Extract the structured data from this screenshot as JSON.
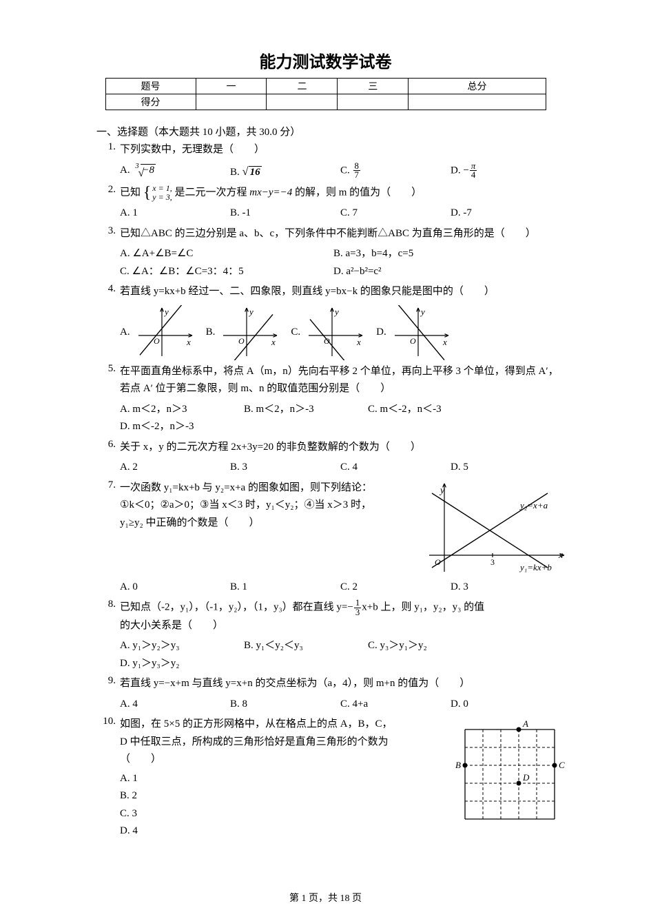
{
  "title": "能力测试数学试卷",
  "score_table": {
    "row1": [
      "题号",
      "一",
      "二",
      "三",
      "总分"
    ],
    "row2_head": "得分"
  },
  "section1_head": "一、选择题（本大题共 10 小题，共 30.0 分）",
  "q1": {
    "num": "1.",
    "text": "下列实数中，无理数是（　　）",
    "A_label": "A.",
    "A_eq": "∛−8",
    "B_label": "B.",
    "B_eq": "√16",
    "C_label": "C.",
    "D_label": "D."
  },
  "q2": {
    "num": "2.",
    "pre": "已知",
    "line1": "x = 1,",
    "line2": "y = 3,",
    "mid": "是二元一次方程 ",
    "eq_mid": "mx−y=−4",
    "post": " 的解，则 m 的值为（　　）",
    "A": "A.  1",
    "B": "B.  -1",
    "C": "C.  7",
    "D": "D.  -7"
  },
  "q3": {
    "num": "3.",
    "text": "已知△ABC 的三边分别是 a、b、c，下列条件中不能判断△ABC 为直角三角形的是（　　）",
    "A": "A.  ∠A+∠B=∠C",
    "B": "B.  a=3，b=4，c=5",
    "C": "C.  ∠A：∠B：∠C=3：4：5",
    "D": "D.  a²−b²=c²"
  },
  "q4": {
    "num": "4.",
    "text": "若直线 y=kx+b 经过一、二、四象限，则直线 y=bx−k 的图象只能是图中的（　　）",
    "A": "A.",
    "B": "B.",
    "C": "C.",
    "D": "D.",
    "axis_y": "y",
    "axis_x": "x",
    "origin": "O",
    "graphs": {
      "A": {
        "slope": 1.2,
        "intercept": 10
      },
      "B": {
        "slope": 1.2,
        "intercept": -15
      },
      "C": {
        "slope": -1.2,
        "intercept": -15
      },
      "D": {
        "slope": -1.2,
        "intercept": 10
      }
    }
  },
  "q5": {
    "num": "5.",
    "text": "在平面直角坐标系中，将点 A（m，n）先向右平移 2 个单位，再向上平移 3 个单位，得到点 A′，若点 A′ 位于第二象限，则 m、n 的取值范围分别是（　　）",
    "A": "A.  m＜2，n＞3",
    "B": "B.  m＜2，n＞-3",
    "C": "C.  m＜-2，n＜-3",
    "D": "D.  m＜-2，n＞-3"
  },
  "q6": {
    "num": "6.",
    "text": "关于 x，y 的二元次方程 2x+3y=20 的非负整数解的个数为（　　）",
    "A": "A.  2",
    "B": "B.  3",
    "C": "C.  4",
    "D": "D.  5"
  },
  "q7": {
    "num": "7.",
    "l1": "一次函数 y₁=kx+b 与 y₂=x+a 的图象如图，则下列结论：",
    "l2": "①k＜0；②a＞0；③当 x＜3 时，y₁＜y₂；④当 x＞3 时，",
    "l3": "y₁≥y₂ 中正确的个数是（　　）",
    "A": "A.  0",
    "B": "B.  1",
    "C": "C.  2",
    "D": "D.  3",
    "fig": {
      "axis_y": "y",
      "axis_x": "x",
      "origin": "O",
      "tick3": "3",
      "label1": "y₂=x+a",
      "label2": "y₁=kx+b"
    }
  },
  "q8": {
    "num": "8.",
    "text_pre": "已知点（-2，y₁），（-1，y₂），（1，y₃）都在直线 y=−",
    "text_post": "x+b 上，则 y₁，y₂，y₃ 的值",
    "text2": "的大小关系是（　　）",
    "A": "A.  y₁＞y₂＞y₃",
    "B": "B.  y₁＜y₂＜y₃",
    "C": "C.  y₃＞y₁＞y₂",
    "D": "D.  y₁＞y₃＞y₂"
  },
  "q9": {
    "num": "9.",
    "text": "若直线 y=−x+m 与直线 y=x+n 的交点坐标为（a，4），则 m+n 的值为（　　）",
    "A": "A.  4",
    "B": "B.  8",
    "C": "C.  4+a",
    "D": "D.  0"
  },
  "q10": {
    "num": "10.",
    "l1": "如图，在 5×5 的正方形网格中，从在格点上的点 A，B，C，",
    "l2": "D 中任取三点，所构成的三角形恰好是直角三角形的个数为",
    "l3": "（　　）",
    "A": "A.  1",
    "B": "B.  2",
    "C": "C.  3",
    "D": "D.  4",
    "labels": {
      "A": "A",
      "B": "B",
      "C": "C",
      "D": "D"
    }
  },
  "footer": "第 1 页，共 18 页",
  "colors": {
    "text": "#000000",
    "line": "#000000",
    "grid": "#000000",
    "marker": "#000000"
  }
}
